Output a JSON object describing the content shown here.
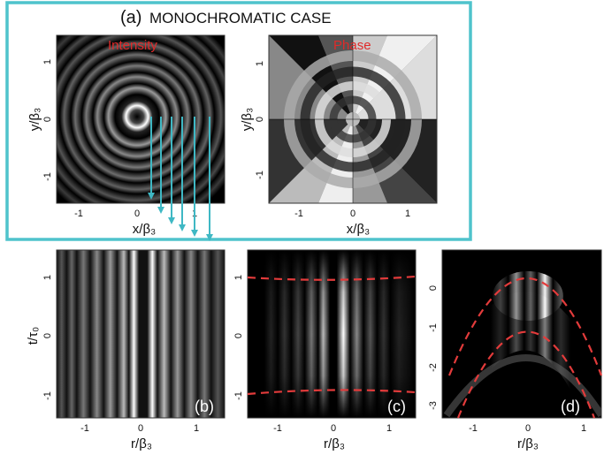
{
  "title": {
    "letter": "(a)",
    "text": "MONOCHROMATIC CASE"
  },
  "panel_a_intensity": {
    "label": "Intensity",
    "xlabel": "x/β₃",
    "ylabel": "y/β₃",
    "xticks": [
      "-1",
      "0",
      "1"
    ],
    "yticks": [
      "1",
      "0",
      "-1"
    ]
  },
  "panel_a_phase": {
    "label": "Phase",
    "xlabel": "x/β₃",
    "ylabel": "y/β₃",
    "xticks": [
      "-1",
      "0",
      "1"
    ],
    "yticks": [
      "1",
      "0",
      "-1"
    ]
  },
  "panel_b": {
    "tag": "(b)",
    "xlabel": "r/β₃",
    "ylabel": "t/τ₀",
    "xticks": [
      "-1",
      "0",
      "1"
    ],
    "yticks": [
      "1",
      "0",
      "-1"
    ]
  },
  "panel_c": {
    "tag": "(c)",
    "xlabel": "r/β₃",
    "xticks": [
      "-1",
      "0",
      "1"
    ],
    "yticks": [
      "1",
      "0",
      "-1"
    ]
  },
  "panel_d": {
    "tag": "(d)",
    "xlabel": "r/β₃",
    "xticks": [
      "-1",
      "0",
      "1"
    ],
    "yticks": [
      "0",
      "-1",
      "-2",
      "-3"
    ]
  },
  "colors": {
    "frame": "#4fc3cc",
    "arrow": "#3fb8c4",
    "label_red": "#e02a2a",
    "dashed": "#e33b3b"
  }
}
